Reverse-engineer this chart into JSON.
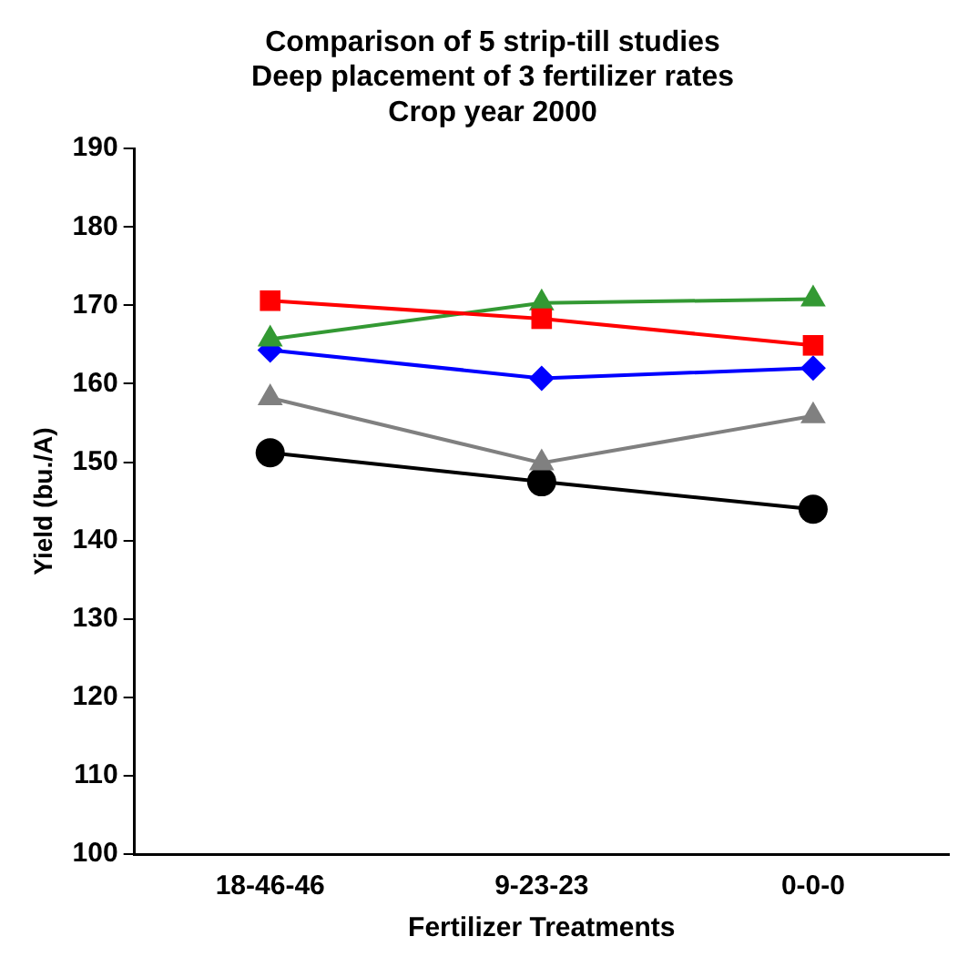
{
  "chart_data": {
    "type": "line",
    "title": "Comparison of 5 strip-till studies\nDeep placement of 3 fertilizer rates\nCrop year 2000",
    "xlabel": "Fertilizer Treatments",
    "ylabel": "Yield (bu./A)",
    "categories": [
      "18-46-46",
      "9-23-23",
      "0-0-0"
    ],
    "ylim": [
      100,
      190
    ],
    "yticks": [
      100,
      110,
      120,
      130,
      140,
      150,
      160,
      170,
      180,
      190
    ],
    "grid": false,
    "legend": false,
    "line_style": "solid",
    "series": [
      {
        "color": "#ff0000",
        "marker": "square",
        "values": [
          170.6,
          168.3,
          164.9
        ]
      },
      {
        "color": "#339933",
        "marker": "triangle",
        "values": [
          165.7,
          170.3,
          170.8
        ]
      },
      {
        "color": "#0000ff",
        "marker": "diamond",
        "values": [
          164.3,
          160.7,
          162.0
        ]
      },
      {
        "color": "#808080",
        "marker": "triangle",
        "values": [
          158.2,
          149.9,
          155.9
        ]
      },
      {
        "color": "#000000",
        "marker": "circle",
        "values": [
          151.2,
          147.5,
          144.0
        ]
      }
    ]
  }
}
